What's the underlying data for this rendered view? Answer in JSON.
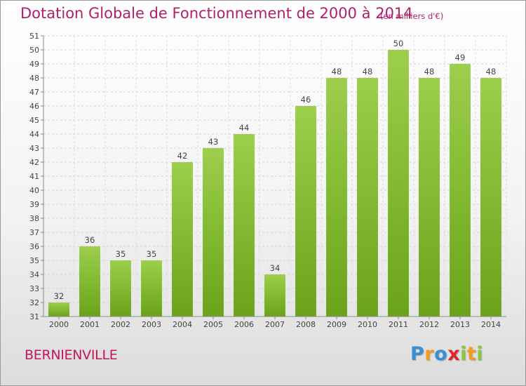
{
  "chart_data": {
    "type": "bar",
    "title": "Dotation Globale de Fonctionnement de 2000 à 2014",
    "subtitle": "(en milliers d'€)",
    "categories": [
      "2000",
      "2001",
      "2002",
      "2003",
      "2004",
      "2005",
      "2006",
      "2007",
      "2008",
      "2009",
      "2010",
      "2011",
      "2012",
      "2013",
      "2014"
    ],
    "values": [
      32,
      36,
      35,
      35,
      42,
      43,
      44,
      34,
      46,
      48,
      48,
      50,
      48,
      49,
      48
    ],
    "ylim": [
      31,
      51
    ],
    "yticks": [
      31,
      32,
      33,
      34,
      35,
      36,
      37,
      38,
      39,
      40,
      41,
      42,
      43,
      44,
      45,
      46,
      47,
      48,
      49,
      50,
      51
    ],
    "xlabel": "",
    "ylabel": "",
    "grid": true,
    "bar_color_top": "#9ccf4c",
    "bar_color_bottom": "#6aa31a"
  },
  "footer": {
    "commune": "BERNIENVILLE",
    "logo_letters": [
      "P",
      "r",
      "o",
      "x",
      "i",
      "t",
      "i"
    ],
    "logo_colors": [
      "#3a8fd0",
      "#f29b20",
      "#3a8fd0",
      "#e0262a",
      "#8cc63f",
      "#f29b20",
      "#8cc63f"
    ]
  },
  "colors": {
    "title": "#b0206a",
    "commune": "#c2185b"
  }
}
